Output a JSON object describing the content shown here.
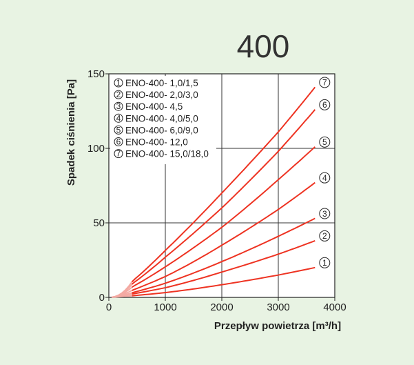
{
  "chart_data": {
    "type": "line",
    "title": "400",
    "xlabel": "Przepływ powietrza [m³/h]",
    "ylabel": "Spadek ciśnienia [Pa]",
    "xlim": [
      0,
      4000
    ],
    "ylim": [
      0,
      150
    ],
    "xticks": [
      0,
      1000,
      2000,
      3000,
      4000
    ],
    "yticks": [
      0,
      50,
      100,
      150
    ],
    "grid": true,
    "legend_position": "top-left",
    "line_color": "#ee3322",
    "series": [
      {
        "marker": "1",
        "name": "ENO-400- 1,0/1,5",
        "x": [
          50,
          420,
          1000,
          2000,
          3000,
          3650
        ],
        "y": [
          0.1,
          1.1,
          3.2,
          8.5,
          15,
          20
        ]
      },
      {
        "marker": "2",
        "name": "ENO-400- 2,0/3,0",
        "x": [
          50,
          420,
          1000,
          2000,
          3000,
          3650
        ],
        "y": [
          0.1,
          2.3,
          6.5,
          17,
          29,
          38
        ]
      },
      {
        "marker": "3",
        "name": "ENO-400- 4,5",
        "x": [
          50,
          420,
          1000,
          2000,
          3000,
          3650
        ],
        "y": [
          0.1,
          3.2,
          9.5,
          24,
          41,
          53
        ]
      },
      {
        "marker": "4",
        "name": "ENO-400- 4,0/5,0",
        "x": [
          50,
          420,
          1000,
          2000,
          3000,
          3650
        ],
        "y": [
          0.1,
          4.9,
          14,
          35,
          59,
          77
        ]
      },
      {
        "marker": "5",
        "name": "ENO-400- 6,0/9,0",
        "x": [
          50,
          420,
          1000,
          2000,
          3000,
          3650
        ],
        "y": [
          0.1,
          7.2,
          20.5,
          47,
          79,
          101
        ]
      },
      {
        "marker": "6",
        "name": "ENO-400- 12,0",
        "x": [
          50,
          420,
          1000,
          2000,
          3000,
          3650
        ],
        "y": [
          0.1,
          9.3,
          27,
          60,
          98,
          126
        ]
      },
      {
        "marker": "7",
        "name": "ENO-400- 15,0/18,0",
        "x": [
          50,
          420,
          1000,
          2000,
          3000,
          3650
        ],
        "y": [
          0.1,
          11,
          31.5,
          70,
          111,
          141
        ]
      }
    ]
  }
}
